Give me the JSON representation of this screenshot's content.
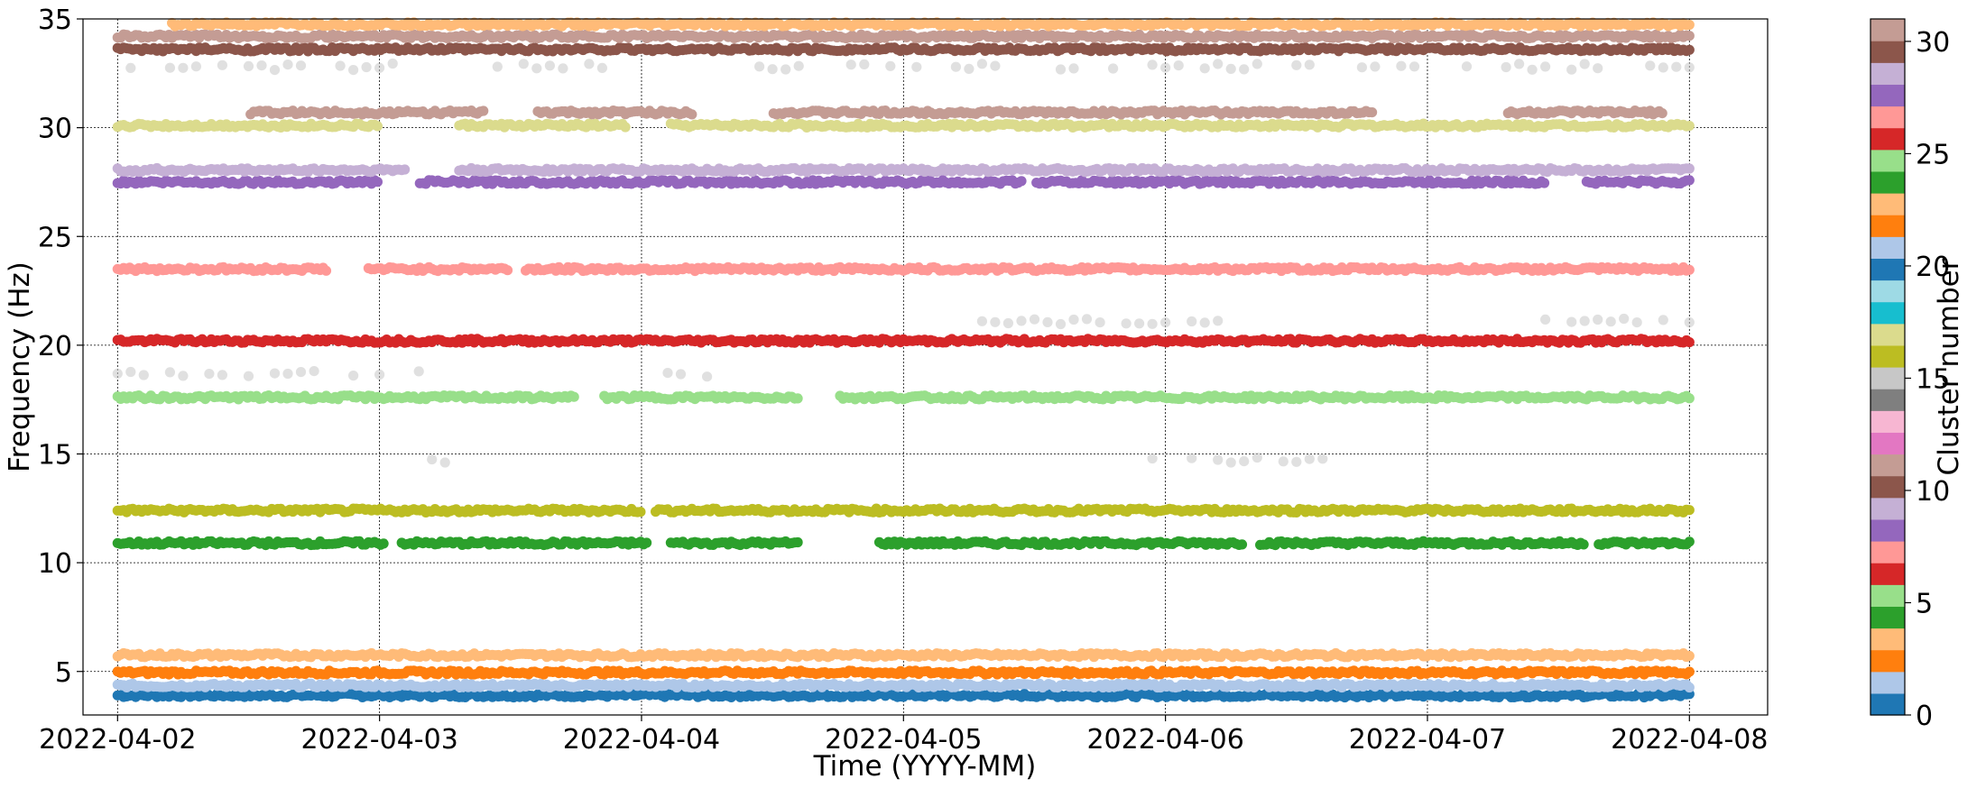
{
  "chart_data": {
    "type": "scatter",
    "title": "",
    "xlabel": "Time (YYYY-MM)",
    "ylabel": "Frequency (Hz)",
    "xlim": [
      "2022-04-01T20:50",
      "2022-04-08T07:10"
    ],
    "ylim": [
      3,
      35
    ],
    "x_ticks": [
      "2022-04-02",
      "2022-04-03",
      "2022-04-04",
      "2022-04-05",
      "2022-04-06",
      "2022-04-07",
      "2022-04-08"
    ],
    "y_ticks": [
      5,
      10,
      15,
      20,
      25,
      30,
      35
    ],
    "grid": "dotted",
    "x_start": "2022-04-02",
    "x_end": "2022-04-08",
    "colorbar": {
      "label": "Cluster number",
      "range": [
        0,
        31
      ],
      "ticks": [
        0,
        5,
        10,
        15,
        20,
        25,
        30
      ],
      "colormap": "tab20",
      "colors": [
        "#1f77b4",
        "#aec7e8",
        "#ff7f0e",
        "#ffbb78",
        "#2ca02c",
        "#98df8a",
        "#d62728",
        "#ff9896",
        "#9467bd",
        "#c5b0d5",
        "#8c564b",
        "#c49c94",
        "#e377c2",
        "#f7b6d2",
        "#7f7f7f",
        "#c7c7c7",
        "#bcbd22",
        "#dbdb8d",
        "#17becf",
        "#9edae5",
        "#1f77b4",
        "#aec7e8",
        "#ff7f0e",
        "#ffbb78",
        "#2ca02c",
        "#98df8a",
        "#d62728",
        "#ff9896",
        "#9467bd",
        "#c5b0d5",
        "#8c564b",
        "#c49c94"
      ]
    },
    "series": [
      {
        "cluster": 0,
        "color": "#1f77b4",
        "frequency": 3.9
      },
      {
        "cluster": 1,
        "color": "#aec7e8",
        "frequency": 4.35
      },
      {
        "cluster": 2,
        "color": "#ff7f0e",
        "frequency": 4.95
      },
      {
        "cluster": 3,
        "color": "#ffbb78",
        "frequency": 5.75
      },
      {
        "cluster": 4,
        "color": "#2ca02c",
        "frequency": 10.9,
        "gaps": [
          [
            1.02,
            1.08
          ],
          [
            2.03,
            2.1
          ],
          [
            2.6,
            2.9
          ],
          [
            4.3,
            4.35
          ],
          [
            5.6,
            5.65
          ]
        ]
      },
      {
        "cluster": 5,
        "color": "#bcbd22",
        "frequency": 12.4,
        "gaps": [
          [
            2.0,
            2.05
          ]
        ]
      },
      {
        "cluster": 6,
        "color": "#98df8a",
        "frequency": 17.6,
        "gaps": [
          [
            1.75,
            1.85
          ],
          [
            2.6,
            2.75
          ]
        ]
      },
      {
        "cluster": 7,
        "color": "#d62728",
        "frequency": 20.2
      },
      {
        "cluster": 8,
        "color": "#ff9896",
        "frequency": 23.5,
        "gaps": [
          [
            0.8,
            0.95
          ],
          [
            1.5,
            1.55
          ]
        ]
      },
      {
        "cluster": 9,
        "color": "#9467bd",
        "frequency": 27.5,
        "gaps": [
          [
            1.0,
            1.15
          ],
          [
            3.45,
            3.5
          ],
          [
            5.45,
            5.6
          ]
        ]
      },
      {
        "cluster": 10,
        "color": "#c5b0d5",
        "frequency": 28.05,
        "gaps": [
          [
            1.1,
            1.3
          ]
        ]
      },
      {
        "cluster": 11,
        "color": "#dbdb8d",
        "frequency": 30.1,
        "gaps": [
          [
            1.0,
            1.3
          ],
          [
            1.95,
            2.1
          ]
        ]
      },
      {
        "cluster": 12,
        "color": "#c49c94",
        "frequency": 30.7,
        "gaps": [
          [
            0.0,
            0.5
          ],
          [
            1.4,
            1.6
          ],
          [
            2.2,
            2.5
          ],
          [
            4.8,
            5.3
          ],
          [
            5.9,
            6.0
          ]
        ]
      },
      {
        "cluster": 13,
        "color": "#8c564b",
        "frequency": 33.6
      },
      {
        "cluster": 14,
        "color": "#c49c94",
        "frequency": 34.2
      },
      {
        "cluster": 15,
        "color": "#ffbb78",
        "frequency": 34.75,
        "gaps": [
          [
            0.0,
            0.2
          ]
        ]
      },
      {
        "cluster": 16,
        "color": "#c7c7c7",
        "frequency": 18.7,
        "gaps": [
          [
            1.2,
            2.0
          ],
          [
            2.3,
            6.0
          ]
        ]
      },
      {
        "cluster": 17,
        "color": "#c7c7c7",
        "frequency": 21.1,
        "gaps": [
          [
            0.0,
            3.3
          ],
          [
            4.2,
            5.3
          ]
        ]
      },
      {
        "cluster": 18,
        "color": "#c7c7c7",
        "frequency": 14.7,
        "gaps": [
          [
            0.0,
            1.1
          ],
          [
            1.5,
            3.8
          ],
          [
            4.7,
            6.0
          ]
        ]
      },
      {
        "cluster": 19,
        "color": "#c7c7c7",
        "frequency": 32.8,
        "gaps": [
          [
            1.1,
            1.4
          ],
          [
            2.0,
            2.4
          ]
        ]
      }
    ]
  }
}
